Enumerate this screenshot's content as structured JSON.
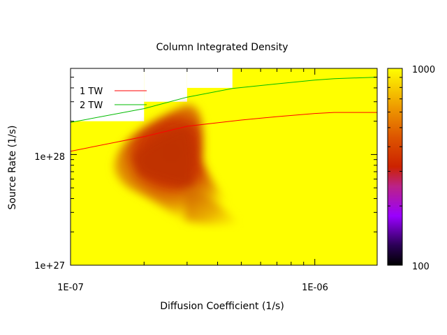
{
  "chart_data": {
    "type": "heatmap",
    "title": "Column Integrated Density",
    "xlabel": "Diffusion Coefficient (1/s)",
    "ylabel": "Source Rate (1/s)",
    "x_scale": "log",
    "y_scale": "log",
    "xlim": [
      1e-07,
      1.8e-06
    ],
    "ylim": [
      1e+27,
      6e+28
    ],
    "x_tick_labels": [
      "1E-07",
      "1E-06"
    ],
    "y_tick_labels": [
      "1e+27",
      "1e+28"
    ],
    "colorbar": {
      "range": [
        100,
        1000
      ],
      "tick_labels": [
        "100",
        "1000"
      ],
      "palette": [
        "#000000",
        "#4400aa",
        "#9900ff",
        "#bb2288",
        "#cc2200",
        "#dd5500",
        "#ee9900",
        "#ffff00"
      ]
    },
    "colors": {
      "background_field": "#ffff00",
      "no_data": "#ffffff",
      "line_1": "#ff0000",
      "line_2": "#00bb00"
    },
    "heatmap_summary": {
      "saturated_value": 1000,
      "min_value_approx": 560,
      "min_region": {
        "x": [
          1.5e-07,
          3.2e-07
        ],
        "y": [
          4.5e+27,
          3e+28
        ]
      },
      "blank_cells": [
        {
          "x": [
            1e-07,
            2e-07
          ],
          "y": [
            2e+28,
            6e+28
          ]
        },
        {
          "x": [
            2e-07,
            3e-07
          ],
          "y": [
            3e+28,
            6e+28
          ]
        },
        {
          "x": [
            3e-07,
            4.6e-07
          ],
          "y": [
            4e+28,
            6e+28
          ]
        }
      ]
    },
    "series": [
      {
        "name": "1 TW",
        "x": [
          1e-07,
          2e-07,
          3e-07,
          5e-07,
          7e-07,
          1e-06,
          1.2e-06,
          1.8e-06
        ],
        "y": [
          1.07e+28,
          1.45e+28,
          1.8e+28,
          2.05e+28,
          2.2e+28,
          2.35e+28,
          2.4e+28,
          2.4e+28
        ]
      },
      {
        "name": "2 TW",
        "x": [
          1e-07,
          2e-07,
          3e-07,
          4.6e-07,
          7e-07,
          1e-06,
          1.2e-06,
          1.8e-06
        ],
        "y": [
          1.95e+28,
          2.6e+28,
          3.3e+28,
          3.95e+28,
          4.35e+28,
          4.7e+28,
          4.85e+28,
          5e+28
        ]
      }
    ],
    "legend_position": "top-left"
  }
}
